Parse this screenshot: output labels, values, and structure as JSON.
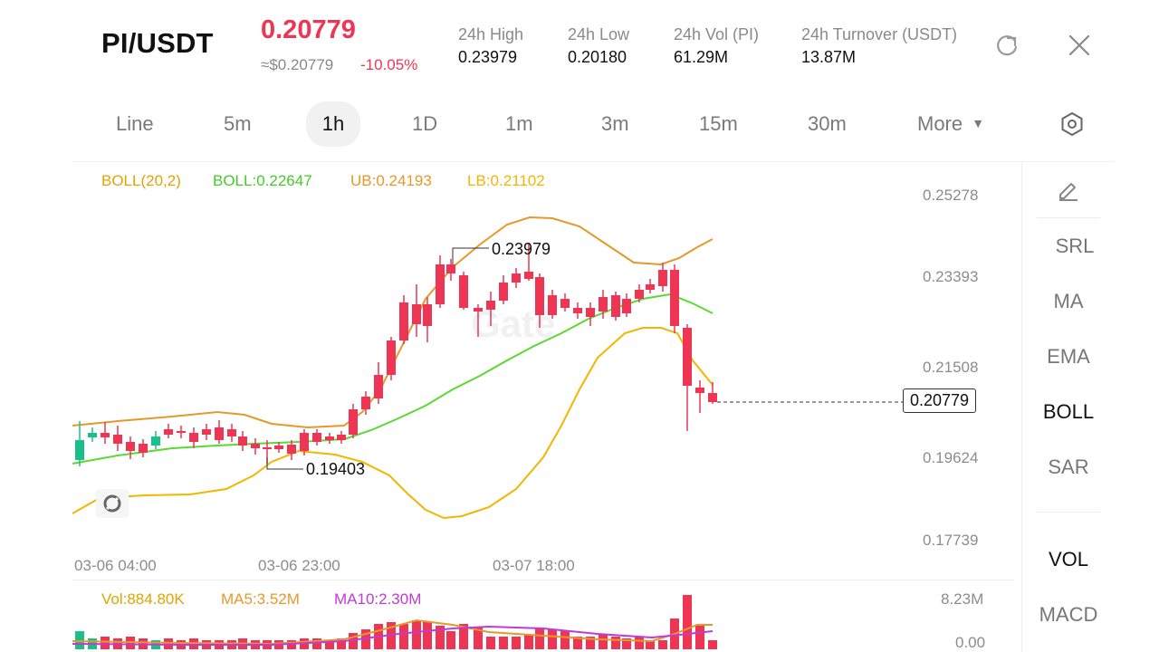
{
  "header": {
    "pair": "PI/USDT",
    "price": "0.20779",
    "usd_price": "≈$0.20779",
    "change": "-10.05%",
    "stats": [
      {
        "label": "24h  High",
        "value": "0.23979"
      },
      {
        "label": "24h  Low",
        "value": "0.20180"
      },
      {
        "label": "24h  Vol (PI)",
        "value": "61.29M"
      },
      {
        "label": "24h  Turnover (USDT)",
        "value": "13.87M"
      }
    ],
    "refresh_icon": "refresh-icon",
    "close_icon": "close-icon"
  },
  "tabs": {
    "items": [
      "Line",
      "5m",
      "1h",
      "1D",
      "1m",
      "3m",
      "15m",
      "30m",
      "More"
    ],
    "active": "1h",
    "settings_icon": "hexagon-settings-icon"
  },
  "chart": {
    "boll_legend": {
      "params": "BOLL(20,2)",
      "mid": "BOLL:0.22647",
      "ub": "UB:0.24193",
      "lb": "LB:0.21102"
    },
    "price_axis": [
      "0.25278",
      "0.23393",
      "0.21508",
      "0.19624",
      "0.17739"
    ],
    "time_axis": [
      "03-06 04:00",
      "03-06 23:00",
      "03-07 18:00"
    ],
    "high_label": "0.23979",
    "low_label": "0.19403",
    "current_price": "0.20779",
    "watermark": "Gate",
    "colors": {
      "up": "#1bbf8a",
      "down": "#ee3553",
      "boll_mid": "#5ad932",
      "boll_ub": "#e7982a",
      "boll_lb": "#f2b600",
      "ma10": "#c03bd6"
    }
  },
  "volume": {
    "vol": "Vol:884.80K",
    "ma5": "MA5:3.52M",
    "ma10": "MA10:2.30M",
    "axis": [
      "8.23M",
      "0.00"
    ]
  },
  "sidebar": {
    "draw_icon": "pencil-icon",
    "items": [
      "SRL",
      "MA",
      "EMA",
      "BOLL",
      "SAR",
      "VOL",
      "MACD"
    ],
    "active_main": "BOLL",
    "active_sub": "VOL"
  }
}
